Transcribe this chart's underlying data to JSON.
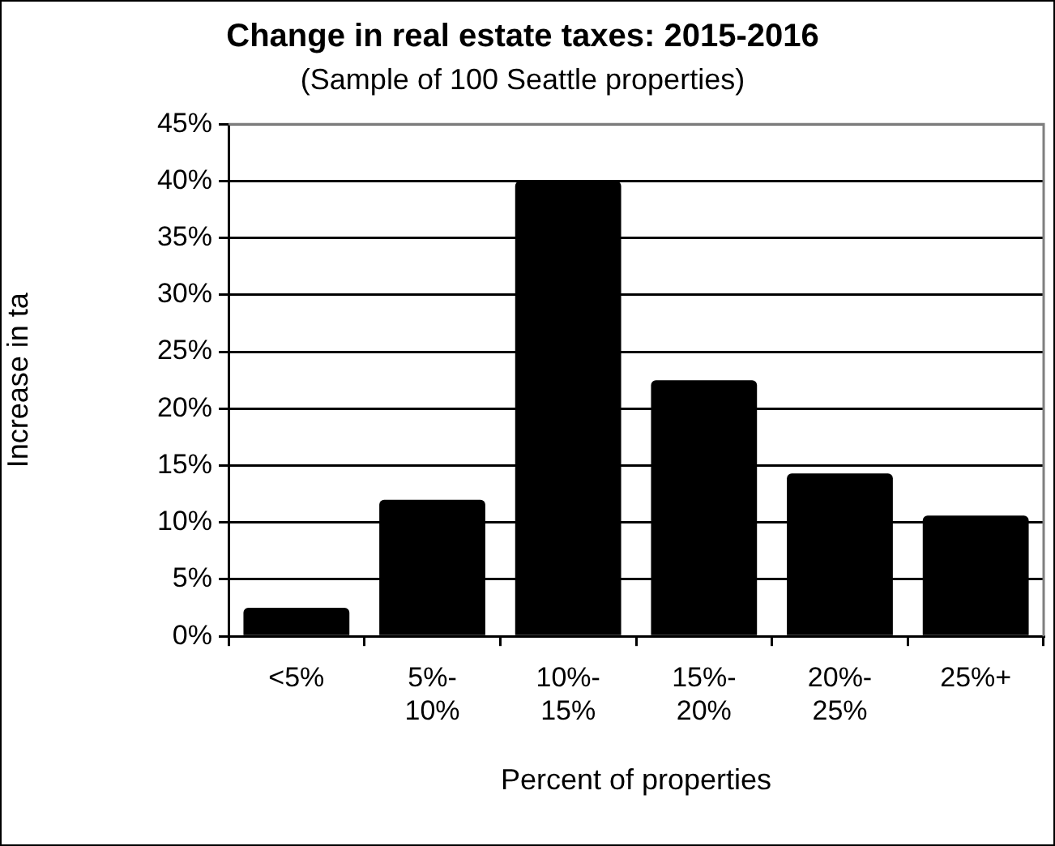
{
  "chart_data": {
    "type": "bar",
    "title": "Change in real estate taxes: 2015-2016",
    "subtitle": "(Sample of 100 Seattle properties)",
    "xlabel": "Percent of properties",
    "ylabel": "Increase in ta",
    "categories": [
      "<5%",
      "5%-10%",
      "10%-15%",
      "15%-20%",
      "20%-25%",
      "25%+"
    ],
    "values": [
      2.5,
      12,
      40,
      22.5,
      14.3,
      10.6
    ],
    "color": "#000000",
    "ylim": [
      0,
      45
    ],
    "yticks": [
      {
        "value": 0,
        "label": "0%"
      },
      {
        "value": 5,
        "label": "5%"
      },
      {
        "value": 10,
        "label": "10%"
      },
      {
        "value": 15,
        "label": "15%"
      },
      {
        "value": 20,
        "label": "20%"
      },
      {
        "value": 25,
        "label": "25%"
      },
      {
        "value": 30,
        "label": "30%"
      },
      {
        "value": 35,
        "label": "35%"
      },
      {
        "value": 40,
        "label": "40%"
      },
      {
        "value": 45,
        "label": "45%"
      }
    ],
    "grid": "y",
    "legend": false
  }
}
